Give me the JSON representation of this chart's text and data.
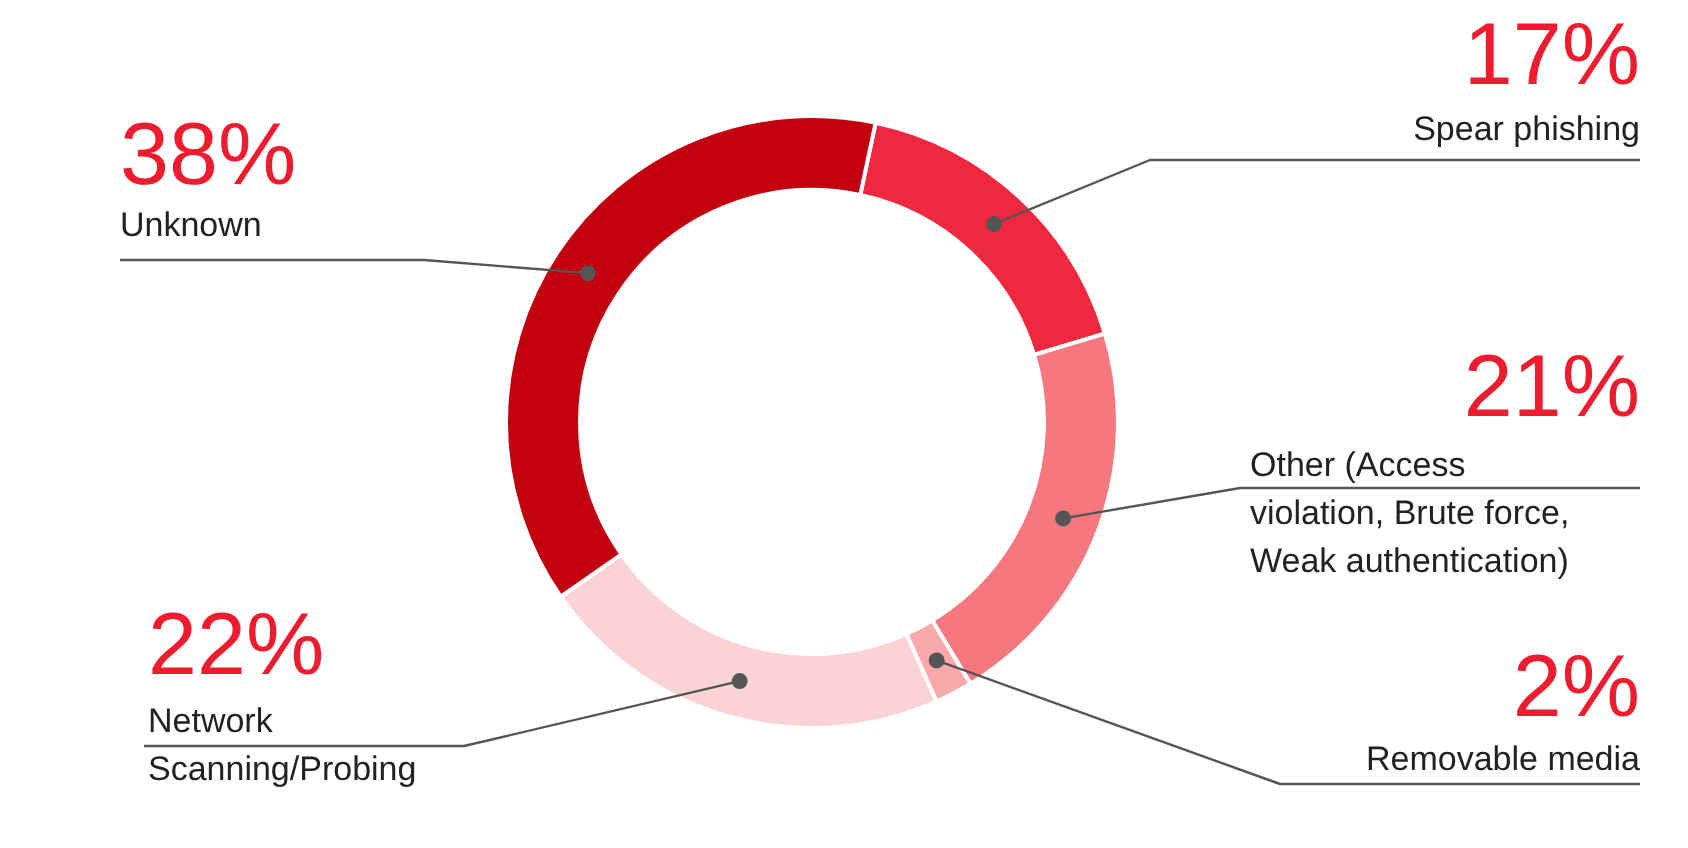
{
  "chart_data": {
    "type": "donut",
    "categories": [
      "Spear phishing",
      "Other (Access violation, Brute force, Weak authentication)",
      "Removable media",
      "Network Scanning/Probing",
      "Unknown"
    ],
    "values": [
      17,
      21,
      2,
      22,
      38
    ],
    "value_labels": [
      "17%",
      "21%",
      "2%",
      "22%",
      "38%"
    ],
    "colors": [
      "#f0283f",
      "#f7777e",
      "#f9a8ac",
      "#fcd3d4",
      "#c20010"
    ],
    "legend": false
  }
}
